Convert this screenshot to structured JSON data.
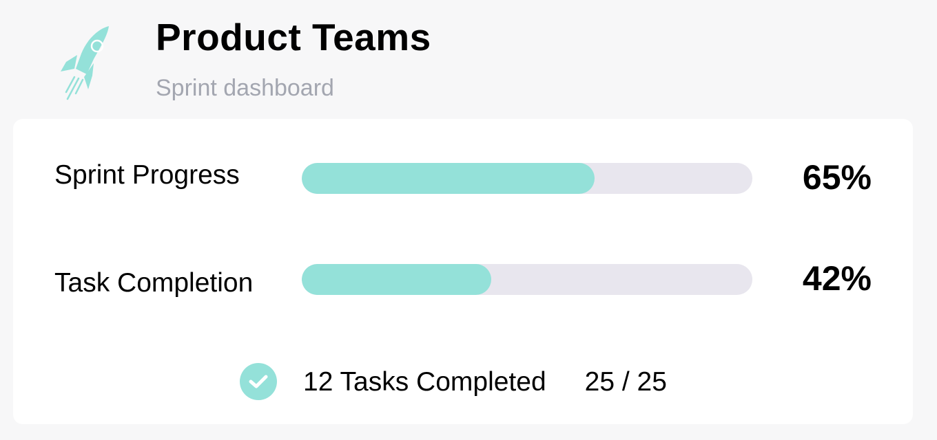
{
  "header": {
    "title": "Product Teams",
    "subtitle": "Sprint dashboard",
    "logo_icon": "rocket-icon"
  },
  "metrics": [
    {
      "label": "Sprint Progress",
      "value_text": "65%",
      "progress": 0.65
    },
    {
      "label": "Task Completion",
      "value_text": "42%",
      "progress": 0.42
    }
  ],
  "footer": {
    "icon": "check-circle-icon",
    "tasks_text": "12 Tasks Completed",
    "count_text": "25 / 25"
  },
  "colors": {
    "accent": "#94e1d9",
    "track": "#e8e6ee",
    "subtitle": "#a3a6b0",
    "background": "#f7f7f8",
    "card": "#ffffff"
  }
}
